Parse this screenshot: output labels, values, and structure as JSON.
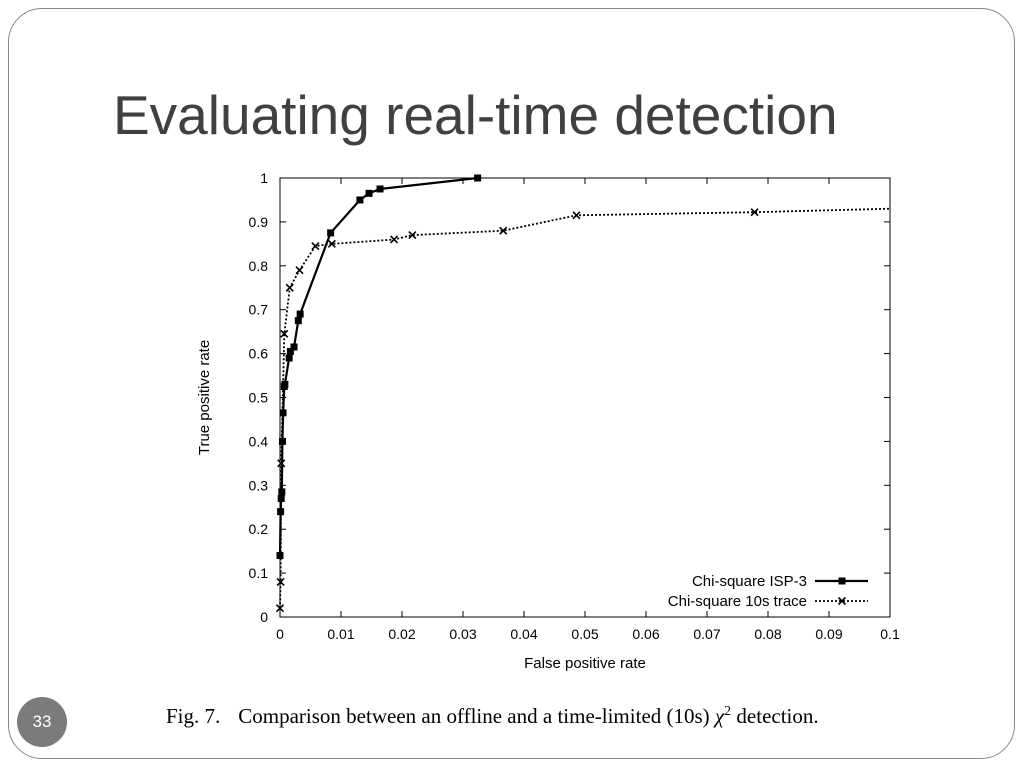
{
  "slide": {
    "title": "Evaluating real-time detection",
    "page_number": "33"
  },
  "caption": {
    "label": "Fig. 7.",
    "text_before": "Comparison between an offline and a time-limited (10s)",
    "symbol": "χ",
    "superscript": "2",
    "text_after": "detection."
  },
  "chart_data": {
    "type": "line",
    "xlabel": "False positive rate",
    "ylabel": "True positive rate",
    "xlim": [
      0,
      0.1
    ],
    "ylim": [
      0,
      1
    ],
    "x_ticks": [
      "0",
      "0.01",
      "0.02",
      "0.03",
      "0.04",
      "0.05",
      "0.06",
      "0.07",
      "0.08",
      "0.09",
      "0.1"
    ],
    "y_ticks": [
      "0",
      "0.1",
      "0.2",
      "0.3",
      "0.4",
      "0.5",
      "0.6",
      "0.7",
      "0.8",
      "0.9",
      "1"
    ],
    "grid": false,
    "legend_position": "bottom-right",
    "series": [
      {
        "name": "Chi-square ISP-3",
        "line_style": "solid",
        "marker": "square",
        "color": "#000000",
        "x": [
          0,
          0.0001,
          0.0002,
          0.0003,
          0.0004,
          0.0005,
          0.0007,
          0.0008,
          0.0015,
          0.0017,
          0.0023,
          0.003,
          0.0033,
          0.0083,
          0.0131,
          0.0146,
          0.0164,
          0.0324
        ],
        "y": [
          0.14,
          0.24,
          0.27,
          0.285,
          0.4,
          0.465,
          0.525,
          0.53,
          0.59,
          0.605,
          0.615,
          0.675,
          0.69,
          0.875,
          0.95,
          0.965,
          0.975,
          1.0
        ]
      },
      {
        "name": "Chi-square 10s trace",
        "line_style": "dotted",
        "marker": "x",
        "color": "#000000",
        "x": [
          0,
          0.0001,
          0.0002,
          0.0007,
          0.0016,
          0.0032,
          0.0058,
          0.0085,
          0.0187,
          0.0217,
          0.0366,
          0.0486,
          0.0778,
          0.1
        ],
        "y": [
          0.02,
          0.08,
          0.35,
          0.645,
          0.75,
          0.79,
          0.845,
          0.85,
          0.86,
          0.87,
          0.88,
          0.915,
          0.922,
          0.93
        ]
      }
    ]
  },
  "colors": {
    "title_text": "#404040",
    "frame_border": "#888888",
    "badge_background": "#7b7b7b",
    "badge_text": "#ffffff"
  }
}
